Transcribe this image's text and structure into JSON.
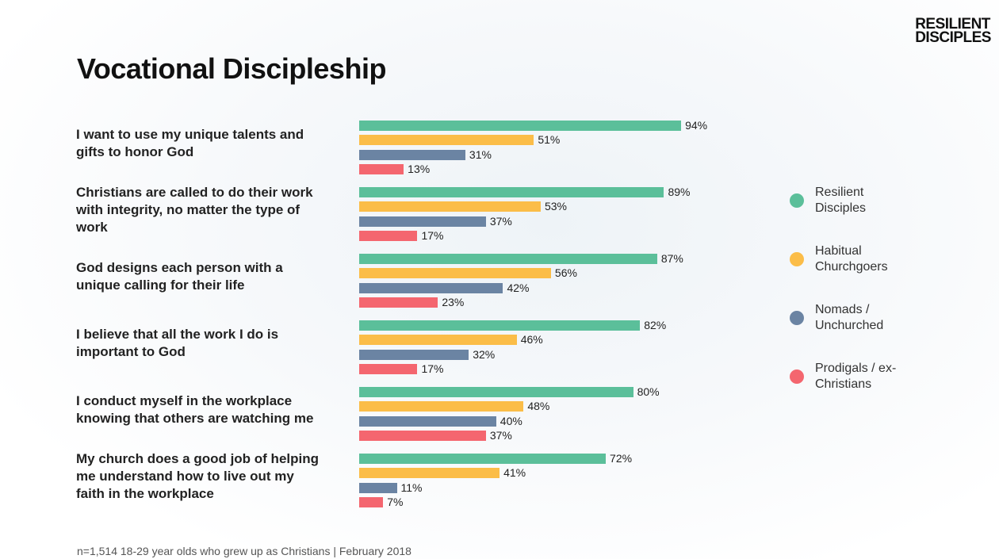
{
  "logo": [
    "RESILIENT",
    "DISCIPLES"
  ],
  "chart_data": {
    "type": "hbar",
    "title": "Vocational Discipleship",
    "categories": [
      "I want to use my unique talents and gifts to honor God",
      "Christians are called to do their work with integrity, no matter the type of work",
      "God designs each person with a unique calling for their life",
      "I believe that all the work I do is important to God",
      "I conduct myself in the workplace knowing that others are watching me",
      "My church does a good job of helping me understand how to live out my faith in the workplace"
    ],
    "xlim": [
      0,
      100
    ],
    "series": [
      {
        "name": "Resilient Disciples",
        "color": "#5bbf9a",
        "values": [
          94,
          89,
          87,
          82,
          80,
          72
        ],
        "value_labels": [
          "94%",
          "89%",
          "87%",
          "82%",
          "80%",
          "72%"
        ]
      },
      {
        "name": "Habitual Churchgoers",
        "color": "#fbbd48",
        "values": [
          51,
          53,
          56,
          46,
          48,
          41
        ],
        "value_labels": [
          "51%",
          "53%",
          "56%",
          "46%",
          "48%",
          "41%"
        ]
      },
      {
        "name": "Nomads / Unchurched",
        "color": "#6b84a3",
        "values": [
          31,
          37,
          42,
          32,
          40,
          11
        ],
        "value_labels": [
          "31%",
          "37%",
          "42%",
          "32%",
          "40%",
          "11%"
        ]
      },
      {
        "name": "Prodigals / ex-Christians",
        "color": "#f4666f",
        "values": [
          13,
          17,
          23,
          17,
          37,
          7
        ],
        "value_labels": [
          "13%",
          "17%",
          "23%",
          "17%",
          "37%",
          "7%"
        ]
      }
    ],
    "legend": "right",
    "footnote": "n=1,514 18-29 year olds who grew up as Christians | February 2018"
  }
}
